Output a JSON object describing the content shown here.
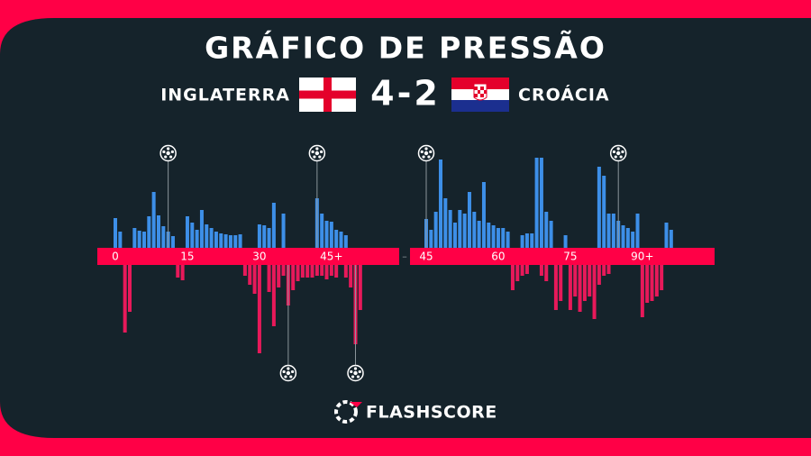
{
  "chart_data": {
    "type": "momentum",
    "title": "GRÁFICO DE PRESSÃO",
    "score": "4-2",
    "separator": "–",
    "brand": "FLASHSCORE",
    "ylim": [
      0,
      100
    ],
    "series": [
      {
        "name": "INGLATERRA",
        "color": "#3d8fe8",
        "values": [
          [
            33,
            18,
            0,
            0,
            22,
            19,
            18,
            35,
            62,
            36,
            24,
            18,
            13,
            0,
            0,
            35,
            28,
            20,
            42,
            26,
            22,
            18,
            16,
            15,
            14,
            14,
            15,
            0,
            0,
            0,
            26,
            25,
            22,
            50,
            0,
            38,
            0,
            0,
            0,
            0,
            0,
            0,
            55,
            38,
            30,
            29,
            20,
            18,
            14,
            0,
            0,
            0
          ],
          [
            32,
            20,
            40,
            98,
            55,
            42,
            28,
            42,
            38,
            62,
            40,
            30,
            73,
            28,
            25,
            22,
            22,
            18,
            0,
            0,
            14,
            16,
            16,
            100,
            100,
            40,
            30,
            0,
            0,
            14,
            0,
            0,
            0,
            0,
            0,
            0,
            90,
            80,
            38,
            38,
            30,
            25,
            22,
            18,
            38,
            0,
            0,
            0,
            0,
            0,
            28,
            20
          ]
        ]
      },
      {
        "name": "CROÁCIA",
        "color": "#e8195a",
        "values": [
          [
            0,
            0,
            75,
            52,
            0,
            0,
            0,
            0,
            0,
            0,
            0,
            0,
            0,
            14,
            17,
            0,
            0,
            0,
            0,
            0,
            0,
            0,
            0,
            0,
            0,
            0,
            0,
            12,
            22,
            32,
            98,
            0,
            30,
            68,
            25,
            12,
            45,
            28,
            18,
            14,
            14,
            14,
            12,
            12,
            16,
            12,
            14,
            0,
            14,
            25,
            88,
            50
          ],
          [
            0,
            0,
            0,
            0,
            0,
            0,
            0,
            0,
            0,
            0,
            0,
            0,
            0,
            0,
            0,
            0,
            0,
            0,
            28,
            18,
            12,
            10,
            0,
            0,
            12,
            18,
            0,
            50,
            40,
            0,
            50,
            35,
            52,
            40,
            35,
            60,
            22,
            12,
            10,
            0,
            0,
            0,
            0,
            0,
            0,
            58,
            42,
            40,
            35,
            28,
            0,
            0
          ]
        ]
      }
    ],
    "halves": [
      {
        "x": [
          0,
          1,
          2,
          3,
          4,
          5,
          6,
          7,
          8,
          9,
          10,
          11,
          12,
          13,
          14,
          15,
          16,
          17,
          18,
          19,
          20,
          21,
          22,
          23,
          24,
          25,
          26,
          27,
          28,
          29,
          30,
          31,
          32,
          33,
          34,
          35,
          36,
          37,
          38,
          39,
          40,
          41,
          42,
          43,
          44,
          45,
          46,
          47,
          48,
          49,
          50,
          51
        ],
        "xticks": [
          0,
          15,
          30,
          {
            "value": 45,
            "label": "45+"
          }
        ]
      },
      {
        "x": [
          45,
          46,
          47,
          48,
          49,
          50,
          51,
          52,
          53,
          54,
          55,
          56,
          57,
          58,
          59,
          60,
          61,
          62,
          63,
          64,
          65,
          66,
          67,
          68,
          69,
          70,
          71,
          72,
          73,
          74,
          75,
          76,
          77,
          78,
          79,
          80,
          81,
          82,
          83,
          84,
          85,
          86,
          87,
          88,
          89,
          90,
          91,
          92,
          93,
          94,
          95,
          96
        ],
        "xticks": [
          45,
          60,
          75,
          {
            "value": 90,
            "label": "90+"
          }
        ]
      }
    ],
    "goals": [
      {
        "team": 0,
        "half": 0,
        "minute": 11
      },
      {
        "team": 0,
        "half": 0,
        "minute": 42
      },
      {
        "team": 0,
        "half": 1,
        "minute": 45
      },
      {
        "team": 0,
        "half": 1,
        "minute": 85
      },
      {
        "team": 1,
        "half": 0,
        "minute": 36
      },
      {
        "team": 1,
        "half": 0,
        "minute": 50
      }
    ]
  }
}
